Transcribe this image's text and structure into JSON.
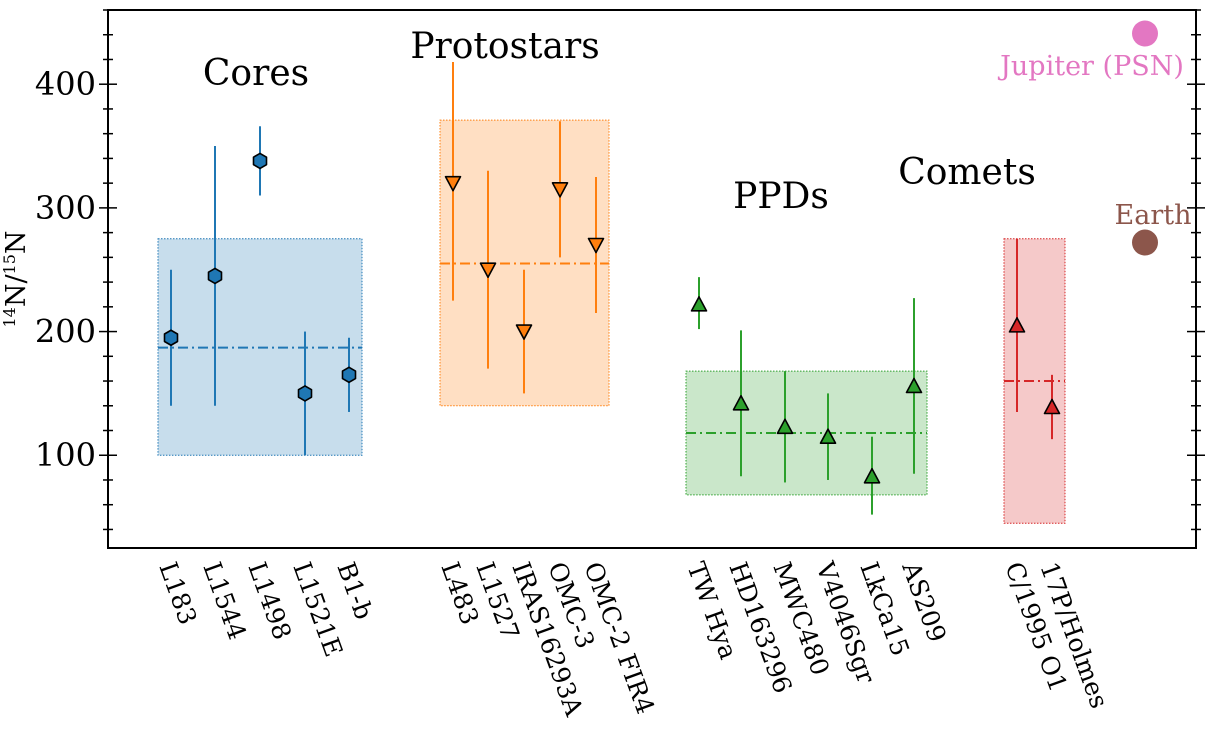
{
  "chart_data": {
    "type": "scatter",
    "ylabel_base": "N/",
    "ylabel_sup1": "14",
    "ylabel_sup2": "15",
    "ylabel_tail": "N",
    "ylim": [
      25,
      460
    ],
    "yticks": [
      100,
      200,
      300,
      400
    ],
    "yminor_step": 20,
    "groups": [
      {
        "name": "Cores",
        "color": "#1f77b4",
        "marker": "hexagon",
        "band": [
          100,
          275
        ],
        "mean": 187,
        "points": [
          {
            "label": "L183",
            "value": 195,
            "lo": 140,
            "hi": 250
          },
          {
            "label": "L1544",
            "value": 245,
            "lo": 140,
            "hi": 350
          },
          {
            "label": "L1498",
            "value": 338,
            "lo": 310,
            "hi": 366
          },
          {
            "label": "L1521E",
            "value": 150,
            "lo": 100,
            "hi": 200
          },
          {
            "label": "B1-b",
            "value": 165,
            "lo": 135,
            "hi": 195
          }
        ]
      },
      {
        "name": "Protostars",
        "color": "#ff7f0e",
        "marker": "triangle-down",
        "band": [
          140,
          371
        ],
        "mean": 255,
        "points": [
          {
            "label": "L483",
            "value": 320,
            "lo": 225,
            "hi": 418
          },
          {
            "label": "L1527",
            "value": 250,
            "lo": 170,
            "hi": 330
          },
          {
            "label": "IRAS16293A",
            "value": 200,
            "lo": 150,
            "hi": 250
          },
          {
            "label": "OMC-3",
            "value": 315,
            "lo": 260,
            "hi": 370
          },
          {
            "label": "OMC-2 FIR4",
            "value": 270,
            "lo": 215,
            "hi": 325
          }
        ]
      },
      {
        "name": "PPDs",
        "color": "#2ca02c",
        "marker": "triangle-up",
        "band": [
          68,
          168
        ],
        "mean": 118,
        "points": [
          {
            "label": "TW Hya",
            "value": 222,
            "lo": 202,
            "hi": 244
          },
          {
            "label": "HD163296",
            "value": 142,
            "lo": 83,
            "hi": 201
          },
          {
            "label": "MWC480",
            "value": 123,
            "lo": 78,
            "hi": 168
          },
          {
            "label": "V4046Sgr",
            "value": 115,
            "lo": 80,
            "hi": 150
          },
          {
            "label": "LkCa15",
            "value": 83,
            "lo": 52,
            "hi": 115
          },
          {
            "label": "AS209",
            "value": 156,
            "lo": 85,
            "hi": 227
          }
        ]
      },
      {
        "name": "Comets",
        "color": "#d62728",
        "marker": "triangle-up",
        "band": [
          45,
          275
        ],
        "mean": 160,
        "points": [
          {
            "label": "C/1995 O1",
            "value": 205,
            "lo": 135,
            "hi": 275
          },
          {
            "label": "17P/Holmes",
            "value": 139,
            "lo": 113,
            "hi": 165
          }
        ]
      }
    ],
    "references": [
      {
        "name": "Jupiter (PSN)",
        "value": 441,
        "color": "#e377c2",
        "label_color": "#e377c2"
      },
      {
        "name": "Earth",
        "value": 272,
        "color": "#8c564b",
        "label_color": "#8c564b"
      }
    ]
  }
}
